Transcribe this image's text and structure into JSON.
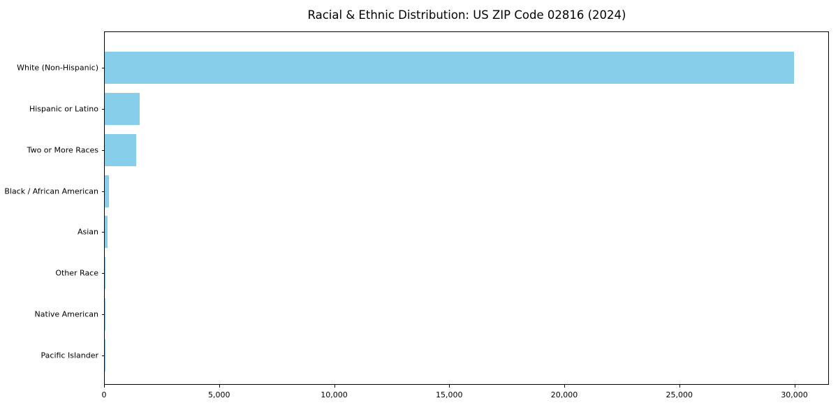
{
  "chart_data": {
    "type": "bar",
    "orientation": "horizontal",
    "title": "Racial & Ethnic Distribution: US ZIP Code 02816 (2024)",
    "categories": [
      "White (Non-Hispanic)",
      "Hispanic or Latino",
      "Two or More Races",
      "Black / African American",
      "Asian",
      "Other Race",
      "Native American",
      "Pacific Islander"
    ],
    "values": [
      30000,
      1520,
      1380,
      180,
      120,
      40,
      15,
      5
    ],
    "xlabel": "",
    "ylabel": "",
    "xlim": [
      0,
      31500
    ],
    "xticks": [
      0,
      5000,
      10000,
      15000,
      20000,
      25000,
      30000
    ],
    "xtick_labels": [
      "0",
      "5,000",
      "10,000",
      "15,000",
      "20,000",
      "25,000",
      "30,000"
    ],
    "bar_color": "#87CEEB",
    "spine_color": "#000000",
    "background_color": "#ffffff",
    "grid": false,
    "legend": null
  }
}
